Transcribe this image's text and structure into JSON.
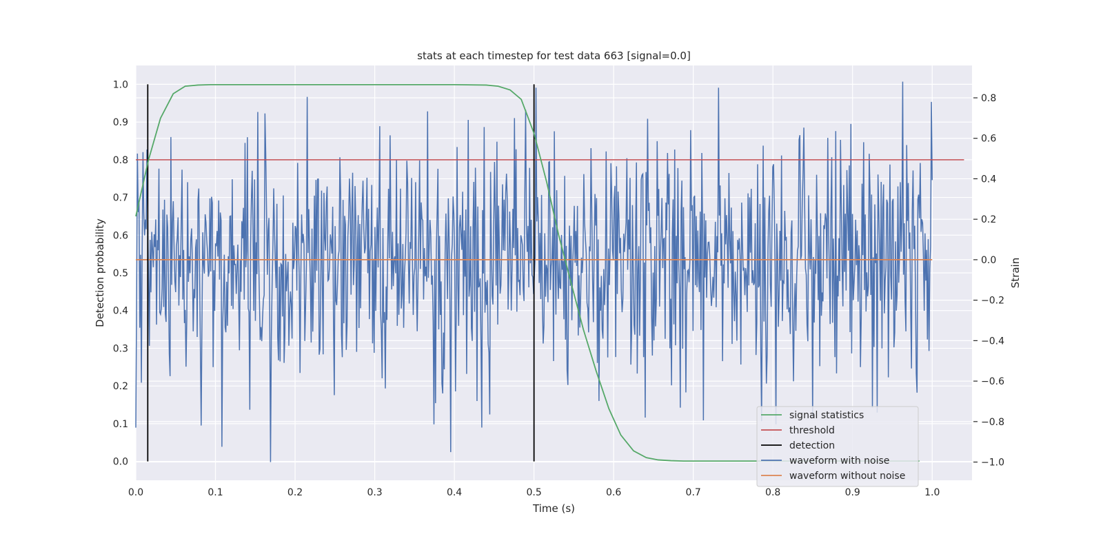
{
  "chart_data": {
    "type": "line",
    "title": "stats at each timestep for test data 663 [signal=0.0]",
    "xlabel": "Time (s)",
    "ylabel": "Detection probability",
    "y2label": "Strain",
    "xlim": [
      0.0,
      1.05
    ],
    "ylim": [
      -0.05,
      1.05
    ],
    "y2lim": [
      -1.09,
      0.96
    ],
    "x_ticks": [
      0.0,
      0.1,
      0.2,
      0.3,
      0.4,
      0.5,
      0.6,
      0.7,
      0.8,
      0.9,
      1.0
    ],
    "y_ticks": [
      0.0,
      0.1,
      0.2,
      0.3,
      0.4,
      0.5,
      0.6,
      0.7,
      0.8,
      0.9,
      1.0
    ],
    "y2_ticks": [
      -1.0,
      -0.8,
      -0.6,
      -0.4,
      -0.2,
      0.0,
      0.2,
      0.4,
      0.6,
      0.8
    ],
    "x_tick_labels": [
      "0.0",
      "0.1",
      "0.2",
      "0.3",
      "0.4",
      "0.5",
      "0.6",
      "0.7",
      "0.8",
      "0.9",
      "1.0"
    ],
    "y_tick_labels": [
      "0.0",
      "0.1",
      "0.2",
      "0.3",
      "0.4",
      "0.5",
      "0.6",
      "0.7",
      "0.8",
      "0.9",
      "1.0"
    ],
    "y2_tick_labels": [
      "−1.0",
      "−0.8",
      "−0.6",
      "−0.4",
      "−0.2",
      "0.0",
      "0.2",
      "0.4",
      "0.6",
      "0.8"
    ],
    "grid": true,
    "legend_position": "lower-right",
    "series": [
      {
        "name": "signal statistics",
        "axis": "left",
        "color": "#55a868",
        "x": [
          0.0,
          0.016,
          0.031,
          0.047,
          0.062,
          0.078,
          0.094,
          0.2,
          0.3,
          0.4,
          0.44,
          0.455,
          0.47,
          0.484,
          0.5,
          0.516,
          0.531,
          0.547,
          0.562,
          0.578,
          0.594,
          0.609,
          0.625,
          0.641,
          0.656,
          0.672,
          0.688,
          0.75,
          0.8,
          0.9,
          0.984
        ],
        "y": [
          0.65,
          0.8,
          0.91,
          0.975,
          0.995,
          0.998,
          0.999,
          0.999,
          0.999,
          0.999,
          0.998,
          0.995,
          0.985,
          0.96,
          0.87,
          0.74,
          0.6,
          0.47,
          0.35,
          0.24,
          0.14,
          0.07,
          0.028,
          0.01,
          0.004,
          0.002,
          0.001,
          0.001,
          0.001,
          0.001,
          0.001
        ]
      },
      {
        "name": "threshold",
        "axis": "left",
        "color": "#c44e52",
        "x": [
          0.0,
          1.04
        ],
        "y": [
          0.8,
          0.8
        ]
      },
      {
        "name": "detection",
        "axis": "left",
        "color": "#000000",
        "segments": [
          {
            "x": 0.015,
            "y": [
              0.0,
              1.0
            ]
          },
          {
            "x": 0.5,
            "y": [
              0.0,
              1.0
            ]
          }
        ]
      },
      {
        "name": "waveform with noise",
        "axis": "right",
        "color": "#4c72b0",
        "x_range": [
          0.0,
          1.0
        ],
        "n_points": 1000,
        "std": 0.3,
        "anchors": [
          {
            "x": 0.0,
            "y": -0.83
          },
          {
            "x": 0.153,
            "y": 0.73
          },
          {
            "x": 0.169,
            "y": -1.0
          },
          {
            "x": 0.475,
            "y": 0.7
          },
          {
            "x": 0.64,
            "y": -0.78
          },
          {
            "x": 0.963,
            "y": 0.88
          },
          {
            "x": 0.999,
            "y": 0.78
          }
        ]
      },
      {
        "name": "waveform without noise",
        "axis": "right",
        "color": "#dd8452",
        "x": [
          0.0,
          1.0
        ],
        "y": [
          0.0,
          0.0
        ]
      }
    ]
  }
}
